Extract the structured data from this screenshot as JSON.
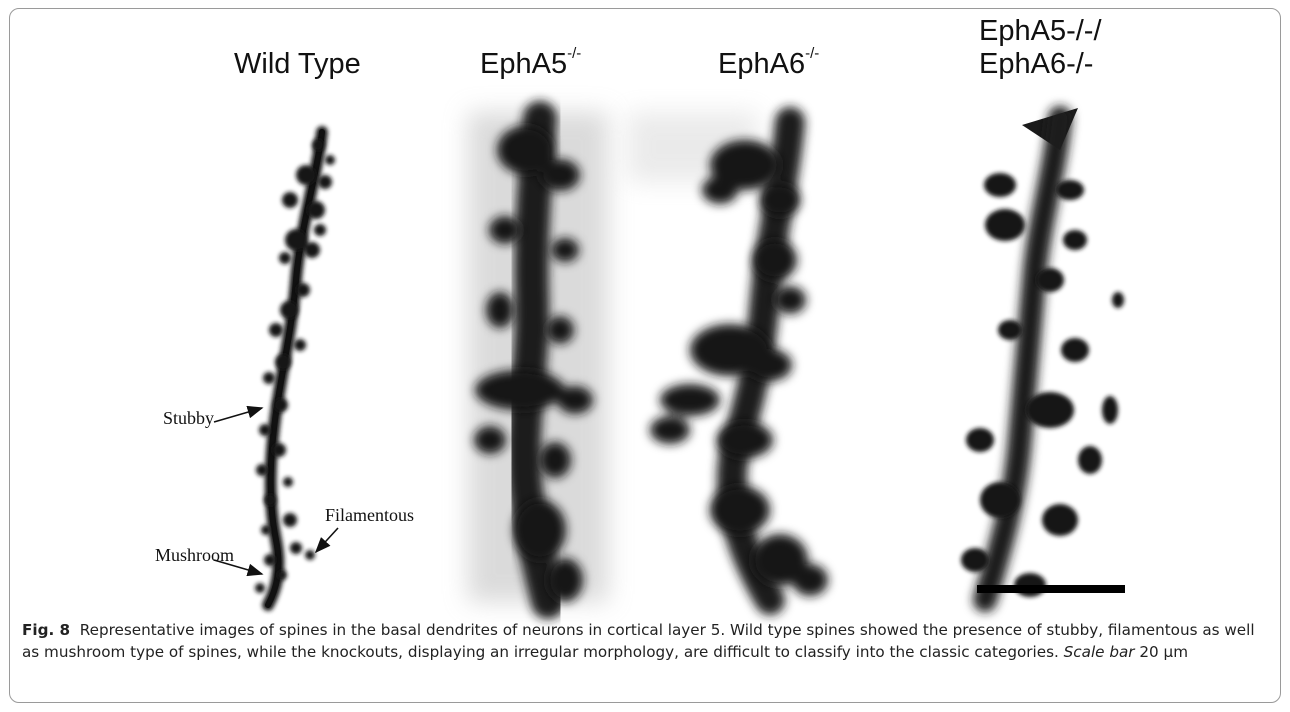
{
  "panels": [
    {
      "label": "Wild Type"
    },
    {
      "label_base": "EphA5",
      "label_sup": "-/-"
    },
    {
      "label_base": "EphA6",
      "label_sup": "-/-"
    },
    {
      "label_line1": "EphA5-/-/",
      "label_line2": "EphA6-/-"
    }
  ],
  "annotations": {
    "stubby": "Stubby",
    "filamentous": "Filamentous",
    "mushroom": "Mushroom"
  },
  "caption": {
    "fig_label": "Fig. 8",
    "text": "Representative images of spines in the basal dendrites of neurons in cortical layer 5. Wild type spines showed the presence of stubby, filamentous as well as mushroom type of spines, while the knockouts, displaying an irregular morphology, are difficult to classify into the classic categories.",
    "scale_label": "Scale bar",
    "scale_value": "20 μm"
  },
  "colors": {
    "stain": "#1a1a1a",
    "border": "#9a9a9a"
  }
}
